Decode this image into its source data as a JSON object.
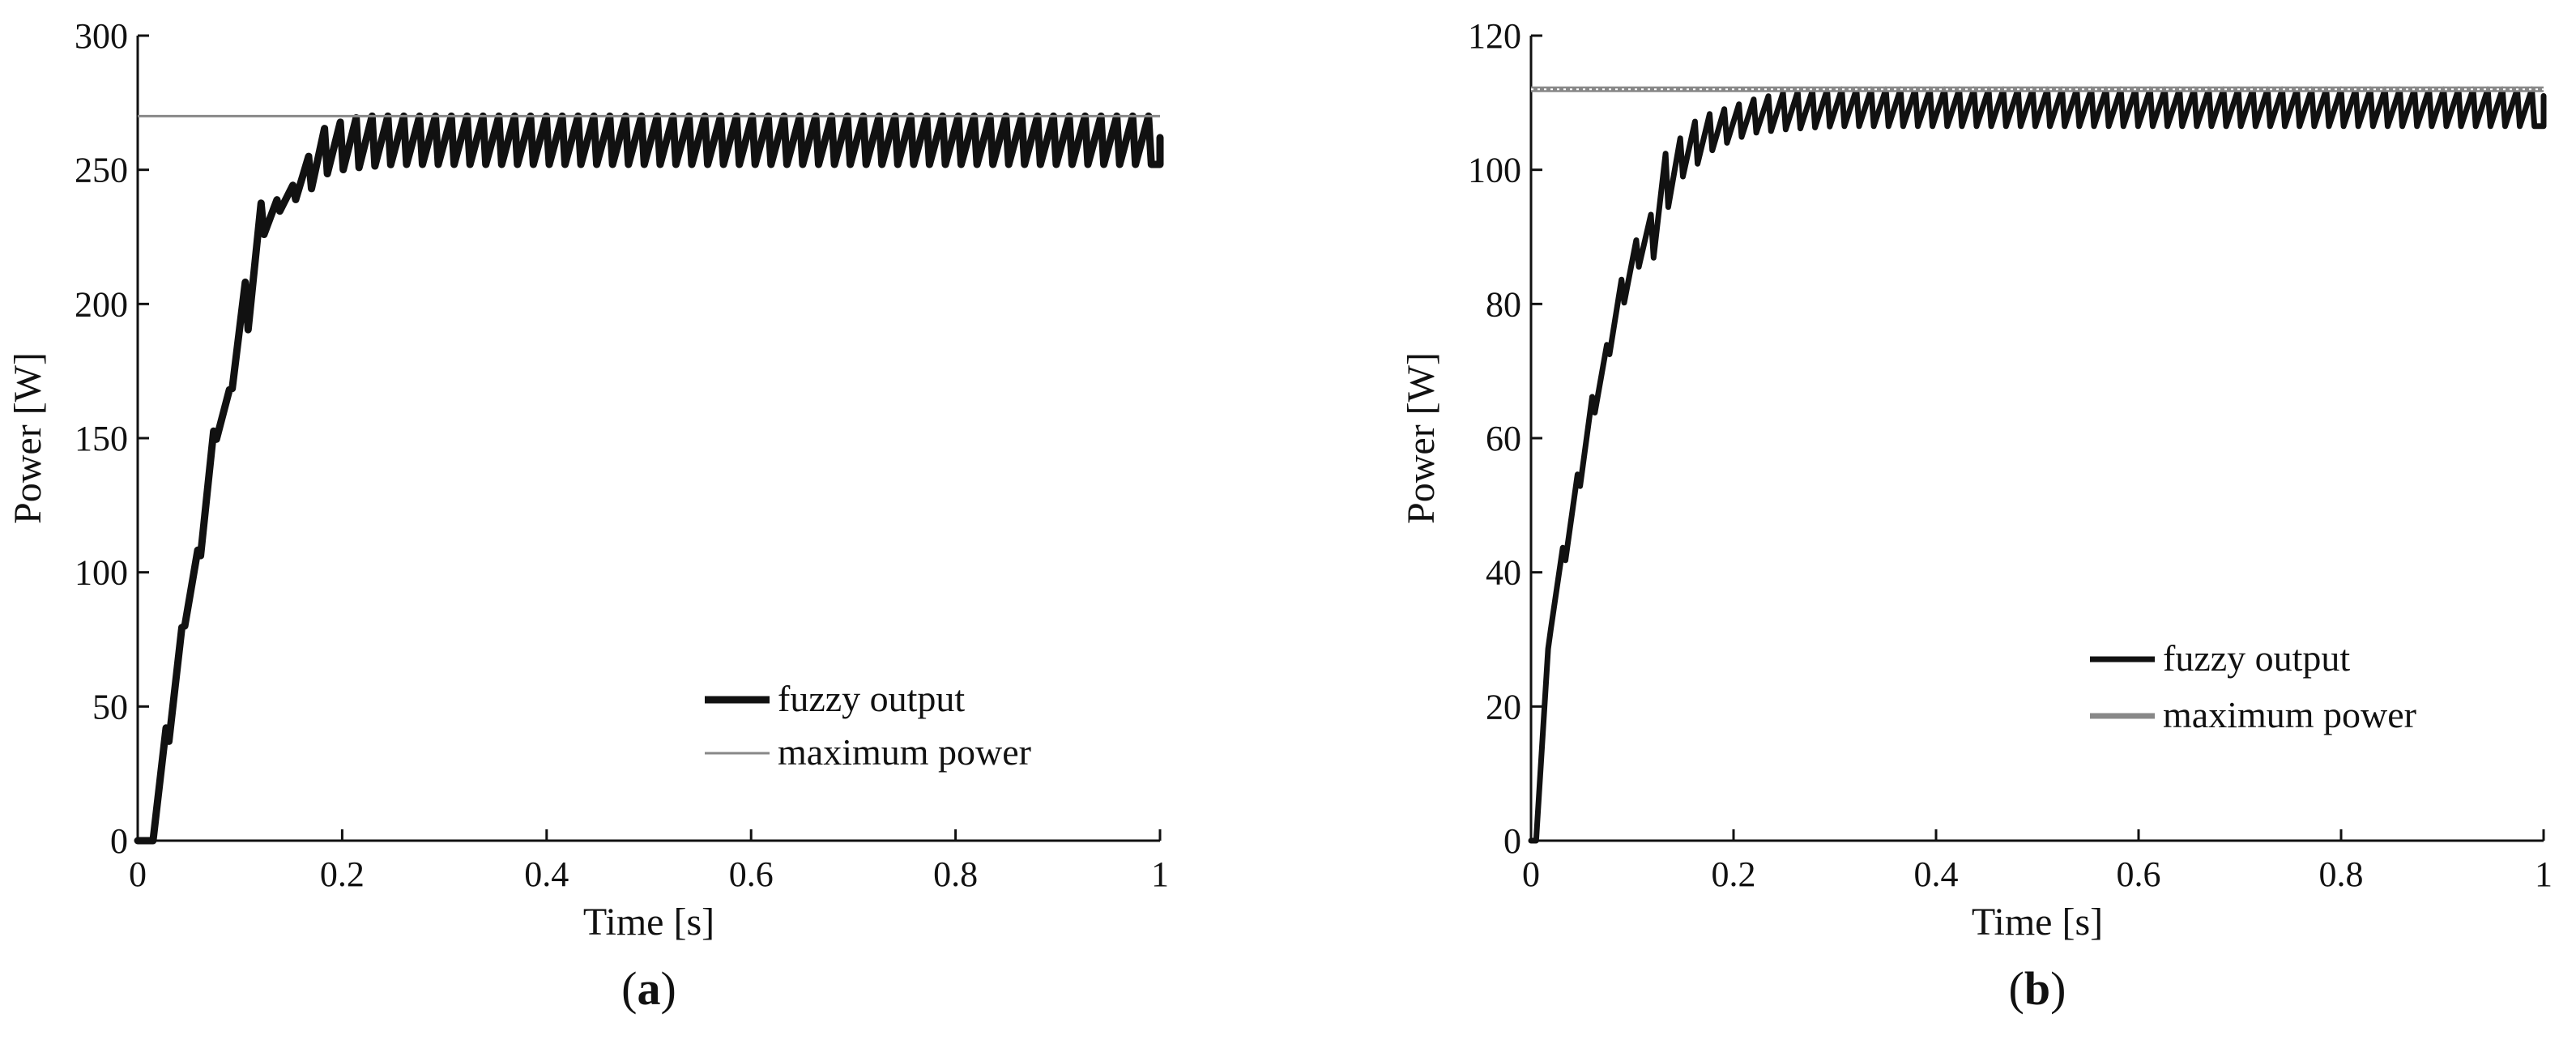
{
  "chart_data": [
    {
      "type": "line",
      "panel_label": "a",
      "xlabel": "Time [s]",
      "ylabel": "Power [W]",
      "xlim": [
        0,
        1
      ],
      "ylim": [
        0,
        300
      ],
      "xticks": [
        0,
        0.2,
        0.4,
        0.6,
        0.8,
        1
      ],
      "xtick_labels": [
        "0",
        "0.2",
        "0.4",
        "0.6",
        "0.8",
        "1"
      ],
      "yticks": [
        0,
        50,
        100,
        150,
        200,
        250,
        300
      ],
      "ytick_labels": [
        "0",
        "50",
        "100",
        "150",
        "200",
        "250",
        "300"
      ],
      "grid": false,
      "legend_position": "bottom-right",
      "series": [
        {
          "name": "fuzzy output",
          "color": "#111111",
          "style": "thick-solid",
          "envelope": {
            "x": [
              0.015,
              0.02,
              0.025,
              0.035,
              0.04,
              0.05,
              0.06,
              0.07,
              0.08,
              0.09,
              0.1,
              0.11,
              0.12,
              0.13,
              0.14,
              0.15,
              0.16,
              0.17,
              0.18,
              0.2,
              0.22,
              0.25,
              0.3,
              1.0
            ],
            "upper": [
              0,
              15,
              42,
              42,
              65,
              110,
              108,
              140,
              170,
              168,
              217,
              200,
              238,
              232,
              243,
              242,
              255,
              255,
              265,
              268,
              270,
              270,
              270,
              270
            ],
            "lower": [
              0,
              5,
              37,
              37,
              50,
              100,
              102,
              130,
              158,
              158,
              200,
              188,
              228,
              222,
              236,
              238,
              240,
              243,
              248,
              250,
              251,
              252,
              252,
              252
            ]
          },
          "oscillation_period": 0.0155,
          "final_value": 262
        },
        {
          "name": "maximum power",
          "color": "#888888",
          "style": "thin-solid",
          "x": [
            0,
            1
          ],
          "y": [
            270,
            270
          ]
        }
      ]
    },
    {
      "type": "line",
      "panel_label": "b",
      "xlabel": "Time [s]",
      "ylabel": "Power [W]",
      "xlim": [
        0,
        1
      ],
      "ylim": [
        0,
        120
      ],
      "xticks": [
        0,
        0.2,
        0.4,
        0.6,
        0.8,
        1
      ],
      "xtick_labels": [
        "0",
        "0.2",
        "0.4",
        "0.6",
        "0.8",
        "1"
      ],
      "yticks": [
        0,
        20,
        40,
        60,
        80,
        100,
        120
      ],
      "ytick_labels": [
        "0",
        "20",
        "40",
        "60",
        "80",
        "100",
        "120"
      ],
      "grid": false,
      "legend_position": "bottom-right",
      "series": [
        {
          "name": "fuzzy output",
          "color": "#111111",
          "style": "medium-solid",
          "envelope": {
            "x": [
              0.005,
              0.01,
              0.02,
              0.03,
              0.04,
              0.05,
              0.06,
              0.07,
              0.08,
              0.09,
              0.1,
              0.11,
              0.12,
              0.13,
              0.14,
              0.15,
              0.16,
              0.17,
              0.18,
              0.2,
              0.22,
              0.25,
              0.3,
              1.0
            ],
            "upper": [
              0,
              10,
              37,
              42,
              54,
              55,
              66,
              70,
              78,
              84,
              86,
              95,
              93,
              103,
              101,
              106,
              107,
              108,
              108.5,
              109.5,
              110.5,
              111.5,
              112,
              112
            ],
            "lower": [
              0,
              3,
              33,
              35,
              52,
              53,
              62,
              68,
              74,
              80,
              81,
              88,
              86,
              95,
              94,
              99,
              100,
              102,
              103,
              104.5,
              105.5,
              106,
              106.5,
              106.5
            ]
          },
          "oscillation_period": 0.0145,
          "final_value": 111
        },
        {
          "name": "maximum power",
          "color": "#888888",
          "style": "double-thin",
          "x": [
            0,
            1
          ],
          "y": [
            112,
            112
          ]
        }
      ]
    }
  ]
}
